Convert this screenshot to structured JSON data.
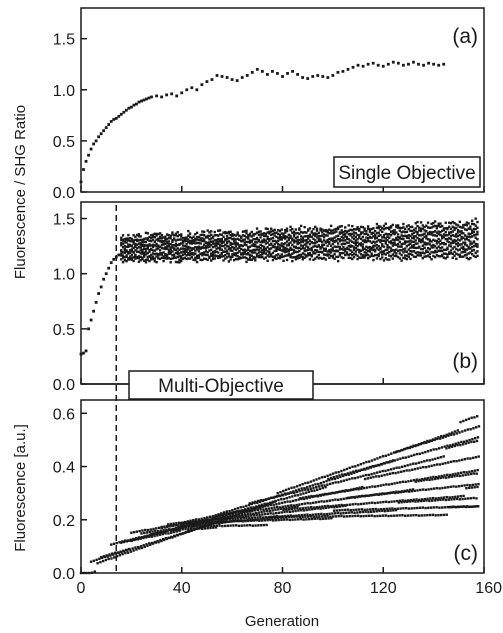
{
  "figure": {
    "shared_xlabel": "Generation",
    "shared_ylabel_top": "Fluorescence / SHG Ratio",
    "bottom_ylabel": "Fluorescence [a.u.]"
  },
  "chart_data": [
    {
      "id": "a",
      "type": "scatter",
      "panel_label": "(a)",
      "annotation": "Single Objective",
      "xlim": [
        0,
        160
      ],
      "ylim": [
        0,
        1.8
      ],
      "x_ticks": [
        0,
        40,
        80,
        120,
        160
      ],
      "x_tick_labels": [
        "",
        "",
        "",
        "",
        ""
      ],
      "y_ticks": [
        0.0,
        0.5,
        1.0,
        1.5
      ],
      "y_tick_labels": [
        "0.0",
        "0.5",
        "1.0",
        "1.5"
      ],
      "series": [
        {
          "points": [
            [
              0,
              0.1
            ],
            [
              1,
              0.22
            ],
            [
              2,
              0.3
            ],
            [
              3,
              0.36
            ],
            [
              4,
              0.42
            ],
            [
              5,
              0.47
            ],
            [
              6,
              0.5
            ],
            [
              7,
              0.54
            ],
            [
              8,
              0.57
            ],
            [
              9,
              0.6
            ],
            [
              10,
              0.63
            ],
            [
              11,
              0.66
            ],
            [
              12,
              0.69
            ],
            [
              13,
              0.71
            ],
            [
              14,
              0.72
            ],
            [
              15,
              0.74
            ],
            [
              16,
              0.76
            ],
            [
              17,
              0.78
            ],
            [
              18,
              0.8
            ],
            [
              19,
              0.82
            ],
            [
              20,
              0.83
            ],
            [
              21,
              0.85
            ],
            [
              22,
              0.86
            ],
            [
              23,
              0.88
            ],
            [
              24,
              0.89
            ],
            [
              25,
              0.9
            ],
            [
              26,
              0.91
            ],
            [
              27,
              0.92
            ],
            [
              28,
              0.93
            ],
            [
              30,
              0.94
            ],
            [
              32,
              0.93
            ],
            [
              34,
              0.95
            ],
            [
              36,
              0.96
            ],
            [
              38,
              0.94
            ],
            [
              40,
              0.97
            ],
            [
              42,
              1.0
            ],
            [
              44,
              1.02
            ],
            [
              46,
              1.0
            ],
            [
              48,
              1.05
            ],
            [
              50,
              1.08
            ],
            [
              52,
              1.1
            ],
            [
              54,
              1.14
            ],
            [
              56,
              1.13
            ],
            [
              58,
              1.12
            ],
            [
              60,
              1.1
            ],
            [
              62,
              1.09
            ],
            [
              64,
              1.12
            ],
            [
              66,
              1.14
            ],
            [
              68,
              1.17
            ],
            [
              70,
              1.2
            ],
            [
              72,
              1.18
            ],
            [
              74,
              1.15
            ],
            [
              76,
              1.18
            ],
            [
              78,
              1.16
            ],
            [
              80,
              1.13
            ],
            [
              82,
              1.16
            ],
            [
              84,
              1.18
            ],
            [
              86,
              1.15
            ],
            [
              88,
              1.12
            ],
            [
              90,
              1.11
            ],
            [
              92,
              1.13
            ],
            [
              94,
              1.14
            ],
            [
              96,
              1.13
            ],
            [
              98,
              1.12
            ],
            [
              100,
              1.14
            ],
            [
              102,
              1.17
            ],
            [
              104,
              1.18
            ],
            [
              106,
              1.2
            ],
            [
              108,
              1.22
            ],
            [
              110,
              1.24
            ],
            [
              112,
              1.23
            ],
            [
              114,
              1.25
            ],
            [
              116,
              1.26
            ],
            [
              118,
              1.24
            ],
            [
              120,
              1.23
            ],
            [
              122,
              1.25
            ],
            [
              124,
              1.27
            ],
            [
              126,
              1.26
            ],
            [
              128,
              1.24
            ],
            [
              130,
              1.25
            ],
            [
              132,
              1.27
            ],
            [
              134,
              1.25
            ],
            [
              136,
              1.24
            ],
            [
              138,
              1.26
            ],
            [
              140,
              1.25
            ],
            [
              142,
              1.24
            ],
            [
              144,
              1.25
            ]
          ]
        }
      ]
    },
    {
      "id": "b",
      "type": "scatter",
      "panel_label": "(b)",
      "annotation": "Multi-Objective",
      "xlim": [
        0,
        160
      ],
      "ylim": [
        0,
        1.65
      ],
      "x_ticks": [
        0,
        40,
        80,
        120,
        160
      ],
      "x_tick_labels": [
        "",
        "",
        "",
        "",
        ""
      ],
      "y_ticks": [
        0.0,
        0.5,
        1.0,
        1.5
      ],
      "y_tick_labels": [
        "0.0",
        "0.5",
        "1.0",
        "1.5"
      ],
      "vline_x": 14,
      "band": {
        "x_start": 16,
        "x_end": 158,
        "lower_start": 1.12,
        "lower_end": 1.16,
        "upper_start": 1.33,
        "upper_end": 1.46
      },
      "series": [
        {
          "points": [
            [
              0,
              0.27
            ],
            [
              1,
              0.28
            ],
            [
              2,
              0.3
            ],
            [
              3,
              0.5
            ],
            [
              4,
              0.58
            ],
            [
              5,
              0.66
            ],
            [
              6,
              0.74
            ],
            [
              7,
              0.82
            ],
            [
              8,
              0.88
            ],
            [
              9,
              0.95
            ],
            [
              10,
              1.0
            ],
            [
              11,
              1.05
            ],
            [
              12,
              1.1
            ],
            [
              13,
              1.13
            ],
            [
              14,
              1.15
            ],
            [
              15,
              1.17
            ]
          ]
        }
      ]
    },
    {
      "id": "c",
      "type": "scatter",
      "panel_label": "(c)",
      "xlabel": "Generation",
      "xlim": [
        0,
        160
      ],
      "ylim": [
        0,
        0.65
      ],
      "x_ticks": [
        0,
        40,
        80,
        120,
        160
      ],
      "x_tick_labels": [
        "0",
        "40",
        "80",
        "120",
        "160"
      ],
      "y_ticks": [
        0.0,
        0.2,
        0.4,
        0.6
      ],
      "y_tick_labels": [
        "0.0",
        "0.2",
        "0.4",
        "0.6"
      ],
      "vline_x": 14,
      "series": [
        {
          "start": [
            0,
            0.0
          ],
          "end": [
            158,
            0.58
          ]
        },
        {
          "start": [
            4,
            0.04
          ],
          "end": [
            158,
            0.55
          ]
        },
        {
          "start": [
            8,
            0.07
          ],
          "end": [
            158,
            0.52
          ]
        },
        {
          "start": [
            12,
            0.1
          ],
          "end": [
            158,
            0.49
          ]
        },
        {
          "start": [
            16,
            0.12
          ],
          "end": [
            158,
            0.44
          ]
        },
        {
          "start": [
            20,
            0.14
          ],
          "end": [
            158,
            0.4
          ]
        },
        {
          "start": [
            24,
            0.15
          ],
          "end": [
            158,
            0.37
          ]
        },
        {
          "start": [
            28,
            0.16
          ],
          "end": [
            158,
            0.34
          ]
        },
        {
          "start": [
            32,
            0.17
          ],
          "end": [
            158,
            0.31
          ]
        },
        {
          "start": [
            36,
            0.17
          ],
          "end": [
            158,
            0.28
          ]
        },
        {
          "start": [
            40,
            0.18
          ],
          "end": [
            158,
            0.26
          ]
        },
        {
          "start": [
            44,
            0.18
          ],
          "end": [
            158,
            0.24
          ]
        }
      ]
    }
  ]
}
